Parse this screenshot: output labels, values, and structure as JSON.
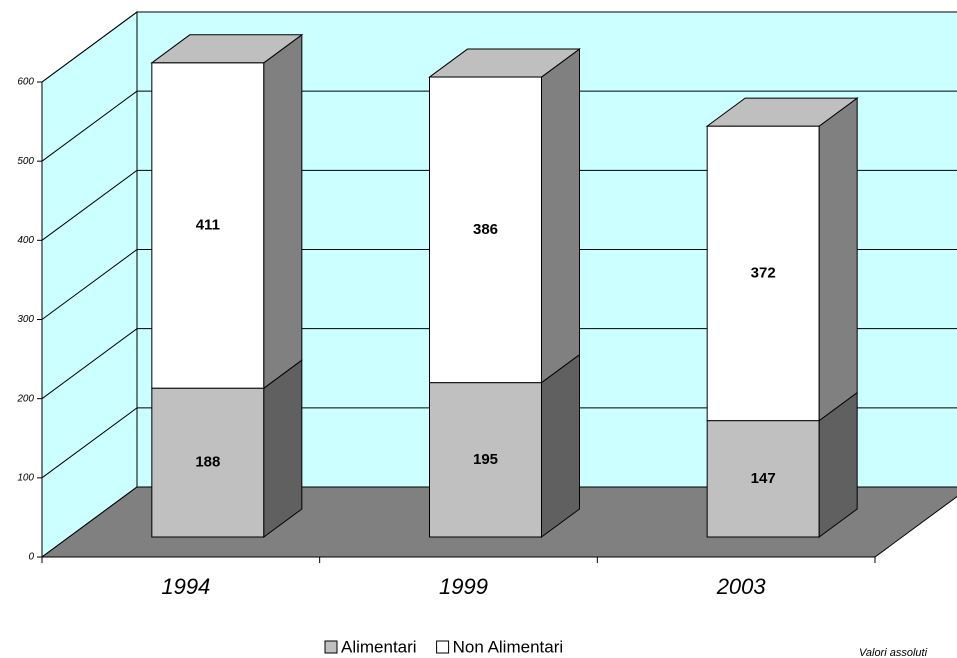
{
  "chart_data": {
    "type": "bar3d-stacked",
    "categories": [
      "1994",
      "1999",
      "2003"
    ],
    "series": [
      {
        "name": "Alimentari",
        "color": "#c0c0c0",
        "values": [
          188,
          195,
          147
        ]
      },
      {
        "name": "Non Alimentari",
        "color": "#ffffff",
        "values": [
          411,
          386,
          372
        ]
      }
    ],
    "ylim": [
      0,
      600
    ],
    "yticks": [
      0,
      100,
      200,
      300,
      400,
      500,
      600
    ],
    "grid": true,
    "wall_color": "#ccffff",
    "floor_color": "#808080",
    "footnote": "Valori assoluti"
  }
}
